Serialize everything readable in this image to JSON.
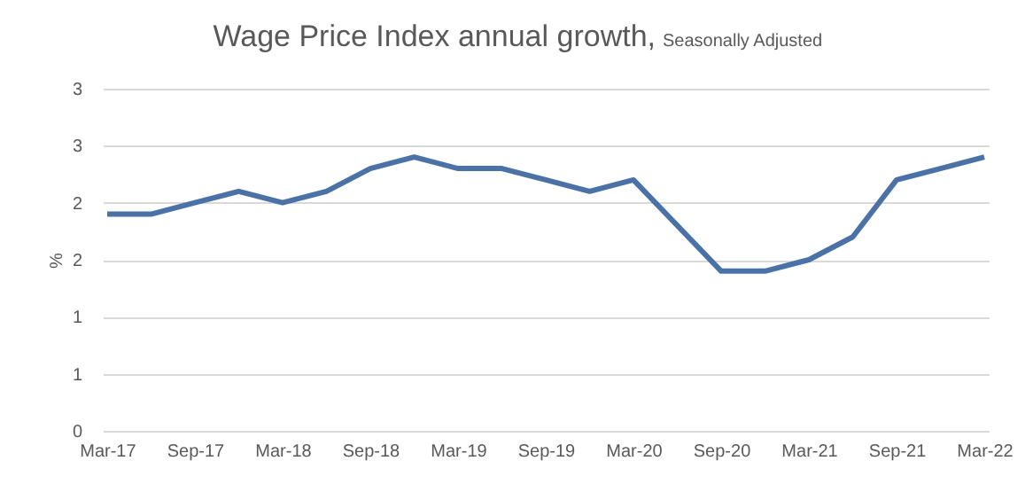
{
  "chart_data": {
    "type": "line",
    "title": "Wage Price Index annual growth,",
    "subtitle": "Seasonally Adjusted",
    "ylabel": "%",
    "categories": [
      "Mar-17",
      null,
      "Sep-17",
      null,
      "Mar-18",
      null,
      "Sep-18",
      null,
      "Mar-19",
      null,
      "Sep-19",
      null,
      "Mar-20",
      null,
      "Sep-20",
      null,
      "Mar-21",
      null,
      "Sep-21",
      null,
      "Mar-22"
    ],
    "series": [
      {
        "color": "#4a72a6",
        "values": [
          1.9,
          1.9,
          2.0,
          2.1,
          2.0,
          2.1,
          2.3,
          2.4,
          2.3,
          2.3,
          2.2,
          2.1,
          2.2,
          1.8,
          1.4,
          1.4,
          1.5,
          1.7,
          2.2,
          2.3,
          2.4
        ]
      }
    ],
    "ylim": [
      0,
      3
    ],
    "yticks": [
      0,
      {
        "value": 0.5,
        "label": "1"
      },
      1,
      {
        "value": 1.5,
        "label": "2"
      },
      2,
      {
        "value": 2.5,
        "label": "3"
      },
      3
    ],
    "grid": "y",
    "marker": "none",
    "line_style": "solid"
  }
}
